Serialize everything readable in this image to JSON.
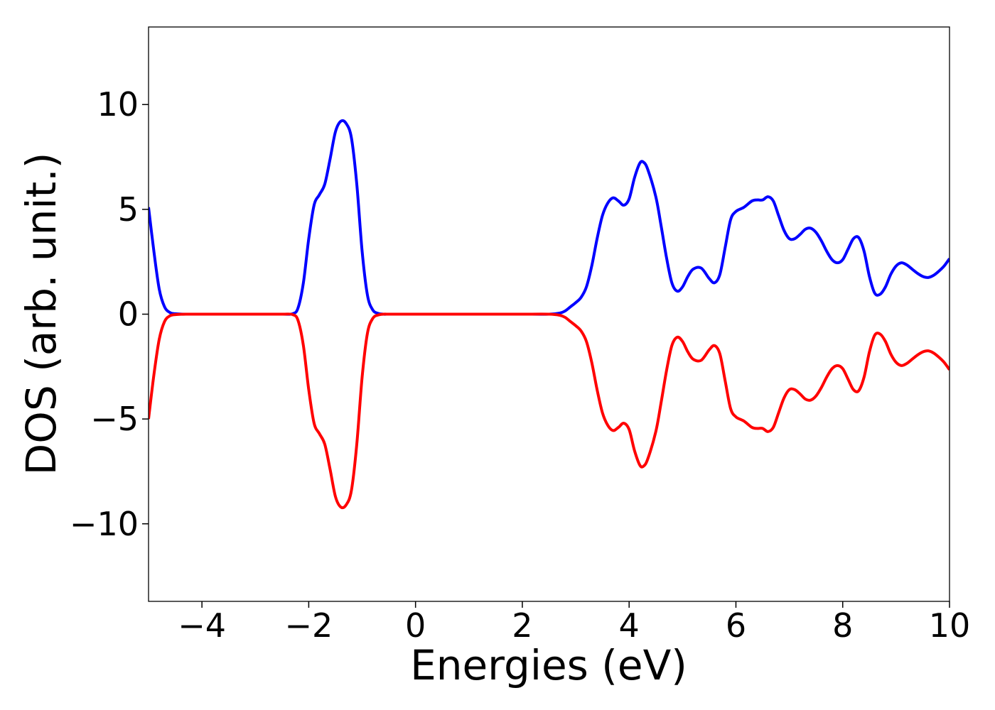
{
  "chart_data": {
    "type": "line",
    "title": "",
    "xlabel": "Energies (eV)",
    "ylabel": "DOS (arb. unit.)",
    "xlim": [
      -5,
      10
    ],
    "ylim": [
      -13.7,
      13.7
    ],
    "grid": false,
    "legend": "none",
    "xticks": [
      -4,
      -2,
      0,
      2,
      4,
      6,
      8,
      10
    ],
    "yticks": [
      -10,
      -5,
      0,
      5,
      10
    ],
    "xtick_labels": [
      "−4",
      "−2",
      "0",
      "2",
      "4",
      "6",
      "8",
      "10"
    ],
    "ytick_labels": [
      "−10",
      "−5",
      "0",
      "5",
      "10"
    ],
    "series": [
      {
        "color": "#0000ff",
        "x": [
          -5.0,
          -4.9,
          -4.8,
          -4.7,
          -4.6,
          -4.5,
          -4.3,
          -4.0,
          -3.5,
          -3.0,
          -2.5,
          -2.3,
          -2.2,
          -2.1,
          -2.0,
          -1.9,
          -1.8,
          -1.7,
          -1.6,
          -1.5,
          -1.4,
          -1.3,
          -1.2,
          -1.1,
          -1.0,
          -0.9,
          -0.8,
          -0.7,
          -0.6,
          -0.5,
          -0.3,
          0.0,
          0.5,
          1.0,
          1.5,
          2.0,
          2.5,
          2.7,
          2.8,
          2.9,
          3.0,
          3.1,
          3.2,
          3.3,
          3.4,
          3.5,
          3.6,
          3.7,
          3.8,
          3.9,
          4.0,
          4.1,
          4.2,
          4.27,
          4.35,
          4.5,
          4.6,
          4.7,
          4.8,
          4.9,
          5.0,
          5.1,
          5.2,
          5.35,
          5.5,
          5.6,
          5.7,
          5.8,
          5.9,
          6.0,
          6.15,
          6.3,
          6.4,
          6.5,
          6.6,
          6.7,
          6.8,
          6.9,
          7.0,
          7.1,
          7.2,
          7.3,
          7.4,
          7.5,
          7.6,
          7.7,
          7.8,
          7.9,
          8.0,
          8.1,
          8.2,
          8.3,
          8.4,
          8.5,
          8.6,
          8.7,
          8.8,
          8.9,
          9.0,
          9.1,
          9.2,
          9.3,
          9.4,
          9.5,
          9.6,
          9.7,
          9.8,
          9.9,
          10.0
        ],
        "y": [
          5.1,
          3.0,
          1.2,
          0.35,
          0.08,
          0.02,
          0.0,
          0.0,
          0.0,
          0.0,
          0.0,
          0.02,
          0.3,
          1.5,
          3.6,
          5.2,
          5.7,
          6.2,
          7.4,
          8.7,
          9.2,
          9.1,
          8.4,
          6.2,
          3.0,
          0.9,
          0.2,
          0.04,
          0.0,
          0.0,
          0.0,
          0.0,
          0.0,
          0.0,
          0.0,
          0.0,
          0.0,
          0.05,
          0.15,
          0.35,
          0.55,
          0.8,
          1.3,
          2.3,
          3.6,
          4.7,
          5.3,
          5.55,
          5.4,
          5.2,
          5.5,
          6.5,
          7.2,
          7.25,
          6.9,
          5.6,
          4.2,
          2.7,
          1.5,
          1.1,
          1.3,
          1.8,
          2.15,
          2.2,
          1.7,
          1.5,
          1.9,
          3.2,
          4.5,
          4.9,
          5.1,
          5.4,
          5.45,
          5.45,
          5.6,
          5.4,
          4.7,
          4.0,
          3.6,
          3.6,
          3.8,
          4.05,
          4.1,
          3.9,
          3.5,
          3.0,
          2.6,
          2.45,
          2.6,
          3.1,
          3.6,
          3.65,
          3.0,
          1.8,
          1.0,
          0.95,
          1.3,
          1.9,
          2.3,
          2.45,
          2.35,
          2.15,
          1.95,
          1.8,
          1.75,
          1.85,
          2.05,
          2.3,
          2.65
        ]
      },
      {
        "color": "#ff0000",
        "x": [
          -5.0,
          -4.9,
          -4.8,
          -4.7,
          -4.6,
          -4.5,
          -4.3,
          -4.0,
          -3.5,
          -3.0,
          -2.5,
          -2.3,
          -2.2,
          -2.1,
          -2.0,
          -1.9,
          -1.8,
          -1.7,
          -1.6,
          -1.5,
          -1.4,
          -1.3,
          -1.2,
          -1.1,
          -1.0,
          -0.9,
          -0.8,
          -0.7,
          -0.6,
          -0.5,
          -0.3,
          0.0,
          0.5,
          1.0,
          1.5,
          2.0,
          2.5,
          2.7,
          2.8,
          2.9,
          3.0,
          3.1,
          3.2,
          3.3,
          3.4,
          3.5,
          3.6,
          3.7,
          3.8,
          3.9,
          4.0,
          4.1,
          4.2,
          4.27,
          4.35,
          4.5,
          4.6,
          4.7,
          4.8,
          4.9,
          5.0,
          5.1,
          5.2,
          5.35,
          5.5,
          5.6,
          5.7,
          5.8,
          5.9,
          6.0,
          6.15,
          6.3,
          6.4,
          6.5,
          6.6,
          6.7,
          6.8,
          6.9,
          7.0,
          7.1,
          7.2,
          7.3,
          7.4,
          7.5,
          7.6,
          7.7,
          7.8,
          7.9,
          8.0,
          8.1,
          8.2,
          8.3,
          8.4,
          8.5,
          8.6,
          8.7,
          8.8,
          8.9,
          9.0,
          9.1,
          9.2,
          9.3,
          9.4,
          9.5,
          9.6,
          9.7,
          9.8,
          9.9,
          10.0
        ],
        "y": [
          -5.0,
          -2.9,
          -1.2,
          -0.35,
          -0.08,
          -0.02,
          0.0,
          0.0,
          0.0,
          0.0,
          0.0,
          -0.02,
          -0.3,
          -1.5,
          -3.6,
          -5.2,
          -5.7,
          -6.2,
          -7.4,
          -8.7,
          -9.2,
          -9.1,
          -8.4,
          -6.2,
          -3.0,
          -0.9,
          -0.2,
          -0.04,
          0.0,
          0.0,
          0.0,
          0.0,
          0.0,
          0.0,
          0.0,
          0.0,
          0.0,
          -0.05,
          -0.15,
          -0.35,
          -0.55,
          -0.8,
          -1.3,
          -2.3,
          -3.6,
          -4.7,
          -5.3,
          -5.55,
          -5.4,
          -5.2,
          -5.5,
          -6.5,
          -7.2,
          -7.25,
          -6.9,
          -5.6,
          -4.2,
          -2.7,
          -1.5,
          -1.1,
          -1.3,
          -1.8,
          -2.15,
          -2.2,
          -1.7,
          -1.5,
          -1.9,
          -3.2,
          -4.5,
          -4.9,
          -5.1,
          -5.4,
          -5.45,
          -5.45,
          -5.6,
          -5.4,
          -4.7,
          -4.0,
          -3.6,
          -3.6,
          -3.8,
          -4.05,
          -4.1,
          -3.9,
          -3.5,
          -3.0,
          -2.6,
          -2.45,
          -2.6,
          -3.1,
          -3.6,
          -3.65,
          -3.0,
          -1.8,
          -1.0,
          -0.95,
          -1.3,
          -1.9,
          -2.3,
          -2.45,
          -2.35,
          -2.15,
          -1.95,
          -1.8,
          -1.75,
          -1.85,
          -2.05,
          -2.3,
          -2.65
        ]
      }
    ]
  }
}
